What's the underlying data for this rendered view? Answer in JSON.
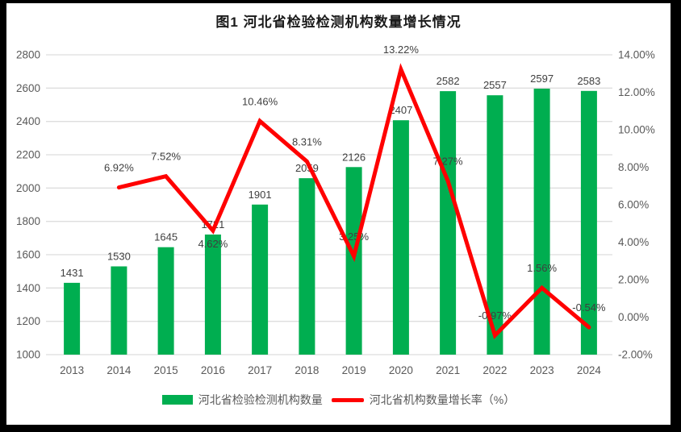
{
  "chart_data": {
    "type": "bar",
    "combo": "bar+line",
    "title": "图1 河北省检验检测机构数量增长情况",
    "categories": [
      "2013",
      "2014",
      "2015",
      "2016",
      "2017",
      "2018",
      "2019",
      "2020",
      "2021",
      "2022",
      "2023",
      "2024"
    ],
    "series": [
      {
        "name": "河北省检验检测机构数量",
        "chart_type": "bar",
        "axis": "left",
        "color": "#00AE50",
        "values": [
          1431,
          1530,
          1645,
          1721,
          1901,
          2059,
          2126,
          2407,
          2582,
          2557,
          2597,
          2583
        ],
        "labels": [
          "1431",
          "1530",
          "1645",
          "1721",
          "1901",
          "2059",
          "2126",
          "2407",
          "2582",
          "2557",
          "2597",
          "2583"
        ]
      },
      {
        "name": "河北省机构数量增长率（%）",
        "chart_type": "line",
        "axis": "right",
        "color": "#FF0000",
        "values": [
          null,
          6.92,
          7.52,
          4.62,
          10.46,
          8.31,
          3.25,
          13.22,
          7.27,
          -0.97,
          1.56,
          -0.54
        ],
        "labels": [
          null,
          "6.92%",
          "7.52%",
          "4.62%",
          "10.46%",
          "8.31%",
          "3.25%",
          "13.22%",
          "7.27%",
          "-0.97%",
          "1.56%",
          "-0.54%"
        ],
        "label_below_indices": [
          3
        ]
      }
    ],
    "left_axis": {
      "min": 1000,
      "max": 2800,
      "step": 200,
      "tick_labels": [
        "1000",
        "1200",
        "1400",
        "1600",
        "1800",
        "2000",
        "2200",
        "2400",
        "2600",
        "2800"
      ]
    },
    "right_axis": {
      "min": -2,
      "max": 14,
      "step": 2,
      "tick_labels": [
        "-2.00%",
        "0.00%",
        "2.00%",
        "4.00%",
        "6.00%",
        "8.00%",
        "10.00%",
        "12.00%",
        "14.00%"
      ]
    },
    "grid": true,
    "legend_position": "bottom",
    "colors": {
      "grid": "#DEDEDE",
      "axis_text": "#595959",
      "data_label": "#3F3F3F",
      "bar": "#00AE50",
      "line": "#FF0000",
      "frame": "#000000",
      "plot_bg": "#FFFFFF"
    }
  },
  "legend": {
    "items": [
      {
        "label": "河北省检验检测机构数量",
        "swatch": "bar",
        "color": "#00AE50"
      },
      {
        "label": "河北省机构数量增长率（%）",
        "swatch": "line",
        "color": "#FF0000"
      }
    ]
  }
}
